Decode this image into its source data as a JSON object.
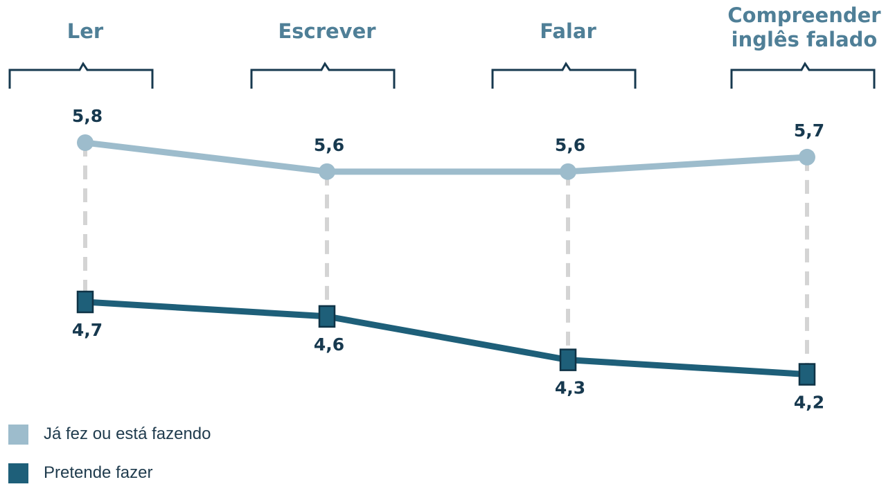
{
  "chart_data": {
    "type": "line",
    "categories": [
      "Ler",
      "Escrever",
      "Falar",
      "Compreender inglês falado"
    ],
    "category_lines": [
      [
        "Ler"
      ],
      [
        "Escrever"
      ],
      [
        "Falar"
      ],
      [
        "Compreender",
        "inglês falado"
      ]
    ],
    "series": [
      {
        "name": "Já fez ou está fazendo",
        "values": [
          5.8,
          5.6,
          5.6,
          5.7
        ],
        "value_labels": [
          "5,8",
          "5,6",
          "5,6",
          "5,7"
        ],
        "color": "#9dbccc",
        "marker": "circle"
      },
      {
        "name": "Pretende fazer",
        "values": [
          4.7,
          4.6,
          4.3,
          4.2
        ],
        "value_labels": [
          "4,7",
          "4,6",
          "4,3",
          "4,2"
        ],
        "color": "#1e5f79",
        "marker": "square"
      }
    ],
    "connector_color": "#d4d4d4",
    "category_label_color": "#4f7f97",
    "bracket_color": "#17394f",
    "grid": false,
    "legend_position": "bottom-left"
  }
}
